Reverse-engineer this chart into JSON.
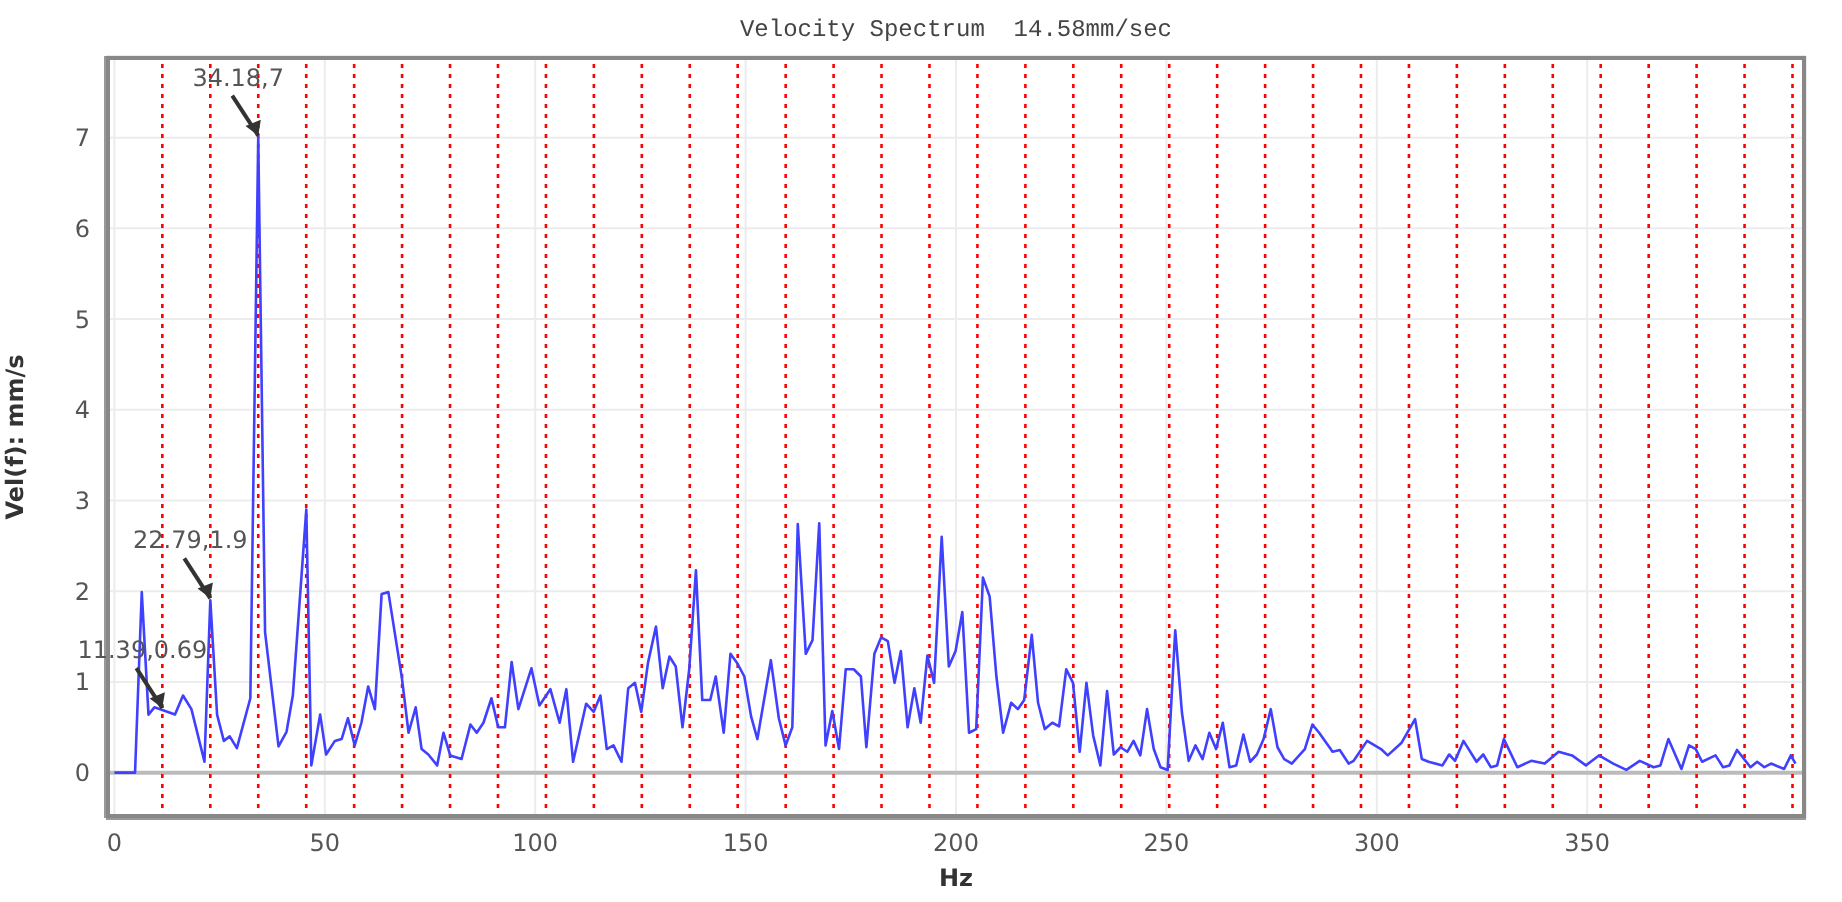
{
  "chart_data": {
    "type": "line",
    "title": "Velocity Spectrum  14.58mm/sec",
    "xlabel": "Hz",
    "ylabel": "Vel(f): mm/s",
    "x": [
      0,
      4.9,
      6.5,
      8.1,
      9.5,
      11.39,
      14.4,
      16.3,
      18.3,
      21.4,
      22.79,
      24.4,
      26,
      27.4,
      29.1,
      32.3,
      34.18,
      35.8,
      39,
      40.9,
      42.4,
      45.6,
      46.8,
      48.9,
      50.3,
      52.4,
      54,
      55.5,
      57.1,
      58.7,
      60.3,
      61.9,
      63.5,
      65.1,
      68.3,
      69.9,
      71.6,
      73,
      74.6,
      76.7,
      78.2,
      79.8,
      82.5,
      84.6,
      86.1,
      87.7,
      89.6,
      91.2,
      92.8,
      94.4,
      96,
      99.1,
      101,
      103.6,
      105.8,
      107.4,
      109,
      112.1,
      113.9,
      115.5,
      117,
      118.6,
      120.5,
      122.1,
      123.7,
      125.2,
      126.8,
      128.7,
      130.3,
      131.9,
      133.4,
      135,
      136.6,
      138.2,
      139.7,
      141.6,
      142.9,
      144.8,
      146.4,
      148.1,
      149.7,
      151.3,
      152.8,
      156,
      157.9,
      159.5,
      161.1,
      162.4,
      164.3,
      165.9,
      167.5,
      169,
      170.6,
      172.2,
      173.8,
      175.7,
      177.4,
      178.7,
      180.6,
      182.2,
      183.8,
      185.4,
      186.9,
      188.5,
      190.1,
      191.6,
      193.2,
      194.8,
      196.6,
      198.3,
      199.9,
      201.5,
      203.1,
      204.8,
      206.4,
      208,
      209.6,
      211.2,
      213.1,
      214.7,
      216.2,
      218,
      219.5,
      221.1,
      222.9,
      224.5,
      226.2,
      227.8,
      229.4,
      231,
      232.6,
      234.3,
      235.9,
      237.5,
      239.1,
      240.7,
      242.2,
      243.8,
      245.4,
      247,
      248.6,
      250.3,
      252.1,
      253.7,
      255.3,
      256.9,
      258.6,
      260.2,
      261.8,
      263.4,
      265,
      266.6,
      268.3,
      269.9,
      271.5,
      273.1,
      274.8,
      276.4,
      278,
      279.8,
      282.9,
      284.7,
      286.3,
      289.5,
      291.2,
      293.3,
      294.5,
      297.7,
      301,
      302.6,
      305.9,
      309.1,
      310.7,
      312.3,
      315.6,
      317.2,
      318.6,
      320.6,
      323.7,
      325.3,
      327.1,
      328.6,
      330.2,
      333.4,
      336.7,
      339.9,
      343.2,
      346.4,
      349.7,
      352.8,
      356.2,
      359.3,
      362.5,
      365.8,
      367.4,
      369.3,
      372.4,
      374.2,
      375.8,
      377.3,
      380.5,
      382.3,
      383.8,
      385.6,
      388.8,
      390.4,
      392.1,
      393.7,
      396.8,
      398.4,
      399.5
    ],
    "values": [
      0,
      0,
      1.99,
      0.64,
      0.72,
      0.69,
      0.64,
      0.85,
      0.7,
      0.12,
      1.9,
      0.64,
      0.35,
      0.4,
      0.27,
      0.82,
      7,
      1.55,
      0.29,
      0.45,
      0.85,
      2.9,
      0.08,
      0.64,
      0.2,
      0.35,
      0.37,
      0.6,
      0.3,
      0.55,
      0.95,
      0.7,
      1.97,
      1.99,
      1.05,
      0.44,
      0.72,
      0.26,
      0.2,
      0.08,
      0.44,
      0.19,
      0.15,
      0.53,
      0.44,
      0.55,
      0.82,
      0.5,
      0.5,
      1.22,
      0.7,
      1.15,
      0.74,
      0.92,
      0.55,
      0.92,
      0.12,
      0.76,
      0.67,
      0.85,
      0.26,
      0.3,
      0.12,
      0.93,
      0.99,
      0.67,
      1.21,
      1.61,
      0.93,
      1.28,
      1.17,
      0.5,
      1.14,
      2.23,
      0.8,
      0.8,
      1.06,
      0.44,
      1.31,
      1.2,
      1.06,
      0.62,
      0.37,
      1.24,
      0.6,
      0.3,
      0.5,
      2.74,
      1.31,
      1.46,
      2.75,
      0.3,
      0.68,
      0.26,
      1.14,
      1.14,
      1.06,
      0.28,
      1.31,
      1.49,
      1.45,
      0.99,
      1.34,
      0.5,
      0.93,
      0.55,
      1.29,
      0.99,
      2.6,
      1.17,
      1.34,
      1.77,
      0.44,
      0.48,
      2.15,
      1.94,
      1.06,
      0.44,
      0.77,
      0.7,
      0.8,
      1.52,
      0.77,
      0.48,
      0.55,
      0.51,
      1.14,
      0.99,
      0.23,
      0.99,
      0.41,
      0.08,
      0.9,
      0.2,
      0.28,
      0.23,
      0.35,
      0.19,
      0.7,
      0.26,
      0.06,
      0.03,
      1.57,
      0.66,
      0.13,
      0.3,
      0.15,
      0.44,
      0.26,
      0.55,
      0.06,
      0.08,
      0.42,
      0.12,
      0.2,
      0.37,
      0.7,
      0.28,
      0.15,
      0.1,
      0.26,
      0.53,
      0.44,
      0.23,
      0.25,
      0.1,
      0.13,
      0.35,
      0.26,
      0.19,
      0.33,
      0.59,
      0.15,
      0.12,
      0.08,
      0.2,
      0.13,
      0.35,
      0.12,
      0.2,
      0.06,
      0.08,
      0.37,
      0.06,
      0.13,
      0.1,
      0.23,
      0.19,
      0.08,
      0.19,
      0.1,
      0.03,
      0.13,
      0.06,
      0.08,
      0.37,
      0.04,
      0.3,
      0.26,
      0.12,
      0.19,
      0.06,
      0.08,
      0.25,
      0.06,
      0.12,
      0.06,
      0.1,
      0.04,
      0.19,
      0.1
    ],
    "color": "#4040ff",
    "xlim": [
      -2,
      402
    ],
    "xticks": [
      0,
      50,
      100,
      150,
      200,
      250,
      300,
      350
    ],
    "ylim": [
      -0.5,
      7.9
    ],
    "yticks": [
      0,
      1,
      2,
      3,
      4,
      5,
      6,
      7
    ],
    "grid": true,
    "annotations": [
      {
        "text": "34.18,7",
        "x": 34.18,
        "y": 7
      },
      {
        "text": "22.79,1.9",
        "x": 22.79,
        "y": 1.9
      },
      {
        "text": "11.39,0.69",
        "x": 11.39,
        "y": 0.69
      }
    ],
    "ref_lines": [
      {
        "axis": "x",
        "value": 11.39,
        "color": "#ff0000",
        "line_style": "dotted"
      },
      {
        "axis": "x",
        "value": 22.79,
        "color": "#ff0000",
        "line_style": "dotted"
      },
      {
        "axis": "x",
        "value": 34.18,
        "color": "#ff0000",
        "line_style": "dotted"
      },
      {
        "axis": "x",
        "value": 45.58,
        "color": "#ff0000",
        "line_style": "dotted"
      },
      {
        "axis": "x",
        "value": 56.97,
        "color": "#ff0000",
        "line_style": "dotted"
      },
      {
        "axis": "x",
        "value": 68.36,
        "color": "#ff0000",
        "line_style": "dotted"
      },
      {
        "axis": "x",
        "value": 79.76,
        "color": "#ff0000",
        "line_style": "dotted"
      },
      {
        "axis": "x",
        "value": 91.15,
        "color": "#ff0000",
        "line_style": "dotted"
      },
      {
        "axis": "x",
        "value": 102.55,
        "color": "#ff0000",
        "line_style": "dotted"
      },
      {
        "axis": "x",
        "value": 113.94,
        "color": "#ff0000",
        "line_style": "dotted"
      },
      {
        "axis": "x",
        "value": 125.33,
        "color": "#ff0000",
        "line_style": "dotted"
      },
      {
        "axis": "x",
        "value": 136.73,
        "color": "#ff0000",
        "line_style": "dotted"
      },
      {
        "axis": "x",
        "value": 148.12,
        "color": "#ff0000",
        "line_style": "dotted"
      },
      {
        "axis": "x",
        "value": 159.52,
        "color": "#ff0000",
        "line_style": "dotted"
      },
      {
        "axis": "x",
        "value": 170.91,
        "color": "#ff0000",
        "line_style": "dotted"
      },
      {
        "axis": "x",
        "value": 182.3,
        "color": "#ff0000",
        "line_style": "dotted"
      },
      {
        "axis": "x",
        "value": 193.7,
        "color": "#ff0000",
        "line_style": "dotted"
      },
      {
        "axis": "x",
        "value": 205.09,
        "color": "#ff0000",
        "line_style": "dotted"
      },
      {
        "axis": "x",
        "value": 216.49,
        "color": "#ff0000",
        "line_style": "dotted"
      },
      {
        "axis": "x",
        "value": 227.88,
        "color": "#ff0000",
        "line_style": "dotted"
      },
      {
        "axis": "x",
        "value": 239.27,
        "color": "#ff0000",
        "line_style": "dotted"
      },
      {
        "axis": "x",
        "value": 250.67,
        "color": "#ff0000",
        "line_style": "dotted"
      },
      {
        "axis": "x",
        "value": 262.06,
        "color": "#ff0000",
        "line_style": "dotted"
      },
      {
        "axis": "x",
        "value": 273.46,
        "color": "#ff0000",
        "line_style": "dotted"
      },
      {
        "axis": "x",
        "value": 284.85,
        "color": "#ff0000",
        "line_style": "dotted"
      },
      {
        "axis": "x",
        "value": 296.24,
        "color": "#ff0000",
        "line_style": "dotted"
      },
      {
        "axis": "x",
        "value": 307.64,
        "color": "#ff0000",
        "line_style": "dotted"
      },
      {
        "axis": "x",
        "value": 319.03,
        "color": "#ff0000",
        "line_style": "dotted"
      },
      {
        "axis": "x",
        "value": 330.43,
        "color": "#ff0000",
        "line_style": "dotted"
      },
      {
        "axis": "x",
        "value": 341.82,
        "color": "#ff0000",
        "line_style": "dotted"
      },
      {
        "axis": "x",
        "value": 353.21,
        "color": "#ff0000",
        "line_style": "dotted"
      },
      {
        "axis": "x",
        "value": 364.61,
        "color": "#ff0000",
        "line_style": "dotted"
      },
      {
        "axis": "x",
        "value": 376,
        "color": "#ff0000",
        "line_style": "dotted"
      },
      {
        "axis": "x",
        "value": 387.4,
        "color": "#ff0000",
        "line_style": "dotted"
      },
      {
        "axis": "x",
        "value": 398.79,
        "color": "#ff0000",
        "line_style": "dotted"
      }
    ]
  }
}
